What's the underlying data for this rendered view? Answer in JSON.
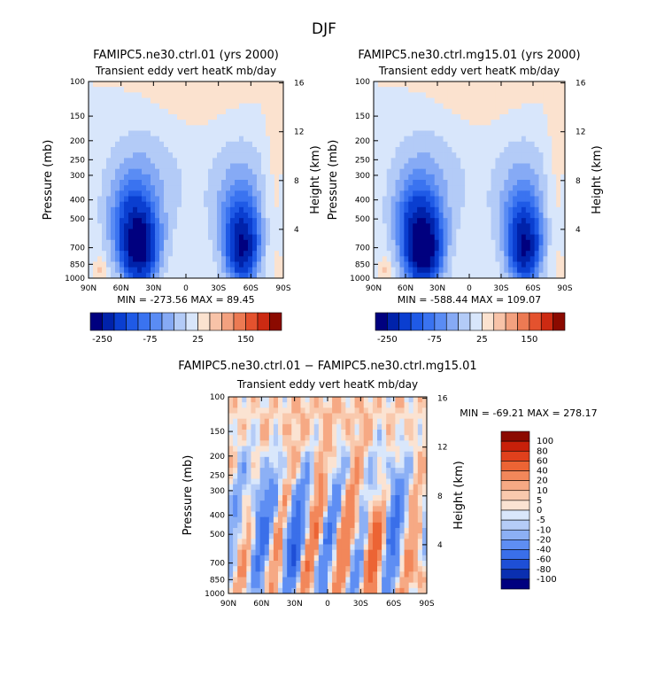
{
  "page_title": "DJF",
  "chart_data": [
    {
      "type": "heatmap",
      "title": "FAMIPC5.ne30.ctrl.01 (yrs 2000)",
      "subtitle": "Transient eddy vert heatK mb/day",
      "ylabel": "Pressure (mb)",
      "ylabel_right": "Height (km)",
      "x_ticks": [
        "90N",
        "60N",
        "30N",
        "0",
        "30S",
        "60S",
        "90S"
      ],
      "y_ticks": [
        "100",
        "150",
        "200",
        "250",
        "300",
        "400",
        "500",
        "700",
        "850",
        "1000"
      ],
      "y_right_ticks": [
        "16",
        "12",
        "8",
        "4"
      ],
      "stats": {
        "min_label": "MIN =",
        "min": "-273.56",
        "max_label": "MAX =",
        "max": "89.45"
      },
      "colorbar": {
        "tick_labels": [
          "-250",
          "-75",
          "25",
          "150"
        ],
        "colors": [
          "#00007f",
          "#0022aa",
          "#0a3ed0",
          "#1f5ae6",
          "#3a73f0",
          "#5a8cf4",
          "#86aaf5",
          "#b3cbf7",
          "#d8e6fb",
          "#fbe2cf",
          "#f8c3a8",
          "#f3a17f",
          "#ec7a53",
          "#e4522e",
          "#cc2a12",
          "#8b0a00"
        ]
      }
    },
    {
      "type": "heatmap",
      "title": "FAMIPC5.ne30.ctrl.mg15.01 (yrs 2000)",
      "subtitle": "Transient eddy vert heatK mb/day",
      "ylabel": "Pressure (mb)",
      "ylabel_right": "Height (km)",
      "x_ticks": [
        "90N",
        "60N",
        "30N",
        "0",
        "30S",
        "60S",
        "90S"
      ],
      "y_ticks": [
        "100",
        "150",
        "200",
        "250",
        "300",
        "400",
        "500",
        "700",
        "850",
        "1000"
      ],
      "y_right_ticks": [
        "16",
        "12",
        "8",
        "4"
      ],
      "stats": {
        "min_label": "MIN =",
        "min": "-588.44",
        "max_label": "MAX =",
        "max": "109.07"
      },
      "colorbar": {
        "tick_labels": [
          "-250",
          "-75",
          "25",
          "150"
        ],
        "colors": [
          "#00007f",
          "#0022aa",
          "#0a3ed0",
          "#1f5ae6",
          "#3a73f0",
          "#5a8cf4",
          "#86aaf5",
          "#b3cbf7",
          "#d8e6fb",
          "#fbe2cf",
          "#f8c3a8",
          "#f3a17f",
          "#ec7a53",
          "#e4522e",
          "#cc2a12",
          "#8b0a00"
        ]
      }
    },
    {
      "type": "heatmap",
      "title": "FAMIPC5.ne30.ctrl.01 − FAMIPC5.ne30.ctrl.mg15.01",
      "subtitle": "Transient eddy vert heatK mb/day",
      "ylabel": "Pressure (mb)",
      "ylabel_right": "Height (km)",
      "x_ticks": [
        "90N",
        "60N",
        "30N",
        "0",
        "30S",
        "60S",
        "90S"
      ],
      "y_ticks": [
        "100",
        "150",
        "200",
        "250",
        "300",
        "400",
        "500",
        "700",
        "850",
        "1000"
      ],
      "y_right_ticks": [
        "16",
        "12",
        "8",
        "4"
      ],
      "stats": {
        "min_label": "MIN =",
        "min": "-69.21",
        "max_label": "MAX =",
        "max": "278.17"
      },
      "colorbar": {
        "tick_labels": [
          "100",
          "80",
          "60",
          "40",
          "20",
          "10",
          "5",
          "0",
          "-5",
          "-10",
          "-20",
          "-40",
          "-60",
          "-80",
          "-100"
        ],
        "colors": [
          "#8b0a00",
          "#c8200a",
          "#e0401c",
          "#ec6434",
          "#f2875a",
          "#f6a984",
          "#f9c9ad",
          "#fbe3d2",
          "#d9e7fb",
          "#b5ccf7",
          "#8cb0f5",
          "#5e8ef3",
          "#3a6fe9",
          "#1e4fd6",
          "#0a2fb0",
          "#00007f"
        ]
      }
    }
  ]
}
